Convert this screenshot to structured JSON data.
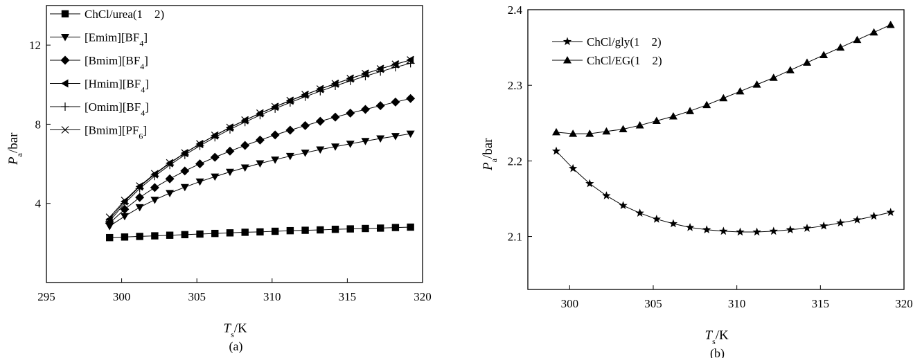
{
  "chart_data": [
    {
      "type": "line",
      "caption": "(a)",
      "xlabel": "T_s/K",
      "ylabel": "P_a/bar",
      "xlim": [
        295,
        320
      ],
      "ylim": [
        0,
        14
      ],
      "xticks": [
        295,
        300,
        305,
        310,
        315,
        320
      ],
      "yticks": [
        4,
        8,
        12
      ],
      "legend_position": "top-left",
      "x": [
        299.2,
        300.2,
        301.2,
        302.2,
        303.2,
        304.2,
        305.2,
        306.2,
        307.2,
        308.2,
        309.2,
        310.2,
        311.2,
        312.2,
        313.2,
        314.2,
        315.2,
        316.2,
        317.2,
        318.2,
        319.2
      ],
      "series": [
        {
          "name": "ChCl/urea(1　2)",
          "label_main": "ChCl/urea(1　2)",
          "marker": "square",
          "values": [
            2.27,
            2.3,
            2.33,
            2.36,
            2.39,
            2.42,
            2.45,
            2.48,
            2.51,
            2.54,
            2.56,
            2.59,
            2.62,
            2.64,
            2.66,
            2.69,
            2.71,
            2.73,
            2.75,
            2.78,
            2.8
          ]
        },
        {
          "name": "[Emim][BF4]",
          "label_main": "[Emim][BF",
          "label_sub": "4",
          "label_tail": "]",
          "marker": "triangle-down",
          "values": [
            2.85,
            3.35,
            3.8,
            4.18,
            4.52,
            4.82,
            5.1,
            5.35,
            5.59,
            5.81,
            6.02,
            6.21,
            6.39,
            6.56,
            6.72,
            6.87,
            7.01,
            7.15,
            7.28,
            7.4,
            7.52
          ]
        },
        {
          "name": "[Bmim][BF4]",
          "label_main": "[Bmim][BF",
          "label_sub": "4",
          "label_tail": "]",
          "marker": "diamond",
          "values": [
            3.0,
            3.7,
            4.3,
            4.8,
            5.24,
            5.64,
            6.0,
            6.33,
            6.64,
            6.93,
            7.2,
            7.46,
            7.7,
            7.93,
            8.15,
            8.36,
            8.56,
            8.75,
            8.94,
            9.12,
            9.3
          ]
        },
        {
          "name": "[Hmim][BF4]",
          "label_main": "[Hmim][BF",
          "label_sub": "4",
          "label_tail": "]",
          "marker": "triangle-left",
          "values": [
            3.2,
            4.1,
            4.85,
            5.47,
            6.03,
            6.54,
            7.0,
            7.43,
            7.83,
            8.2,
            8.55,
            8.88,
            9.19,
            9.49,
            9.78,
            10.05,
            10.31,
            10.56,
            10.8,
            11.03,
            11.25
          ]
        },
        {
          "name": "[Omim][BF4]",
          "label_main": "[Omim][BF",
          "label_sub": "4",
          "label_tail": "]",
          "marker": "plus",
          "values": [
            3.1,
            4.0,
            4.75,
            5.38,
            5.94,
            6.45,
            6.91,
            7.34,
            7.74,
            8.11,
            8.46,
            8.79,
            9.1,
            9.39,
            9.67,
            9.94,
            10.19,
            10.43,
            10.66,
            10.88,
            11.08
          ]
        },
        {
          "name": "[Bmim][PF6]",
          "label_main": "[Bmim][PF",
          "label_sub": "6",
          "label_tail": "]",
          "marker": "x",
          "values": [
            3.3,
            4.15,
            4.88,
            5.5,
            6.05,
            6.55,
            7.01,
            7.44,
            7.84,
            8.21,
            8.56,
            8.89,
            9.2,
            9.5,
            9.78,
            10.05,
            10.31,
            10.56,
            10.8,
            11.03,
            11.25
          ]
        }
      ]
    },
    {
      "type": "line",
      "caption": "(b)",
      "xlabel": "T_s/K",
      "ylabel": "P_a/bar",
      "xlim": [
        297.5,
        320
      ],
      "ylim": [
        2.03,
        2.4
      ],
      "xticks": [
        300,
        305,
        310,
        315,
        320
      ],
      "yticks": [
        2.1,
        2.2,
        2.3,
        2.4
      ],
      "legend_position": "top-left",
      "x": [
        299.2,
        300.2,
        301.2,
        302.2,
        303.2,
        304.2,
        305.2,
        306.2,
        307.2,
        308.2,
        309.2,
        310.2,
        311.2,
        312.2,
        313.2,
        314.2,
        315.2,
        316.2,
        317.2,
        318.2,
        319.2
      ],
      "series": [
        {
          "name": "ChCl/gly(1　2)",
          "label_main": "ChCl/gly(1　2)",
          "marker": "star",
          "values": [
            2.213,
            2.19,
            2.17,
            2.154,
            2.141,
            2.131,
            2.123,
            2.117,
            2.112,
            2.109,
            2.107,
            2.106,
            2.106,
            2.107,
            2.109,
            2.111,
            2.114,
            2.118,
            2.122,
            2.127,
            2.132
          ]
        },
        {
          "name": "ChCl/EG(1　2)",
          "label_main": "ChCl/EG(1　2)",
          "marker": "triangle-up",
          "values": [
            2.238,
            2.236,
            2.236,
            2.239,
            2.242,
            2.247,
            2.253,
            2.259,
            2.266,
            2.274,
            2.283,
            2.292,
            2.301,
            2.31,
            2.32,
            2.33,
            2.34,
            2.35,
            2.36,
            2.37,
            2.38
          ]
        }
      ]
    }
  ]
}
